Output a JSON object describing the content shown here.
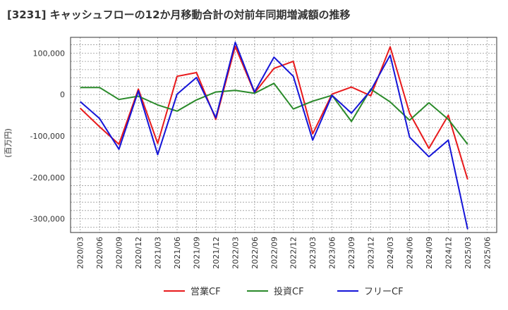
{
  "chart_data": {
    "type": "line",
    "title": "[3231]  キャッシュフローの12か月移動合計の対前年同期増減額の推移",
    "ylabel": "(百万円)",
    "xlabel": "",
    "x": [
      "2020/03",
      "2020/06",
      "2020/09",
      "2020/12",
      "2021/03",
      "2021/06",
      "2021/09",
      "2021/12",
      "2022/03",
      "2022/06",
      "2022/09",
      "2022/12",
      "2023/03",
      "2023/06",
      "2023/09",
      "2023/12",
      "2024/03",
      "2024/06",
      "2024/09",
      "2024/12",
      "2025/03",
      "2025/06"
    ],
    "yticks": [
      100000,
      0,
      -100000,
      -200000,
      -300000
    ],
    "ytick_labels": [
      "100,000",
      "0",
      "-100,000",
      "-200,000",
      "-300,000"
    ],
    "ylim": [
      -333000,
      138000
    ],
    "grid": true,
    "legend_position": "bottom",
    "series": [
      {
        "name": "営業CF",
        "color": "#e8191b",
        "values": [
          -33000,
          -78000,
          -120000,
          13000,
          -118000,
          44000,
          53000,
          -60000,
          116000,
          4000,
          63000,
          80000,
          -95000,
          1000,
          18000,
          -3000,
          115000,
          -45000,
          -130000,
          -50000,
          -205000,
          null
        ]
      },
      {
        "name": "投資CF",
        "color": "#2a8a2a",
        "values": [
          17000,
          17000,
          -12000,
          -4000,
          -25000,
          -40000,
          -13000,
          6000,
          10000,
          3000,
          27000,
          -35000,
          -16000,
          -2000,
          -65000,
          13000,
          -18000,
          -62000,
          -20000,
          -60000,
          -120000,
          null
        ]
      },
      {
        "name": "フリーCF",
        "color": "#1414d8",
        "values": [
          -17000,
          -58000,
          -132000,
          9000,
          -145000,
          1000,
          41000,
          -56000,
          126000,
          6000,
          90000,
          44000,
          -110000,
          -2000,
          -45000,
          10000,
          95000,
          -103000,
          -150000,
          -110000,
          -325000,
          null
        ]
      }
    ]
  }
}
